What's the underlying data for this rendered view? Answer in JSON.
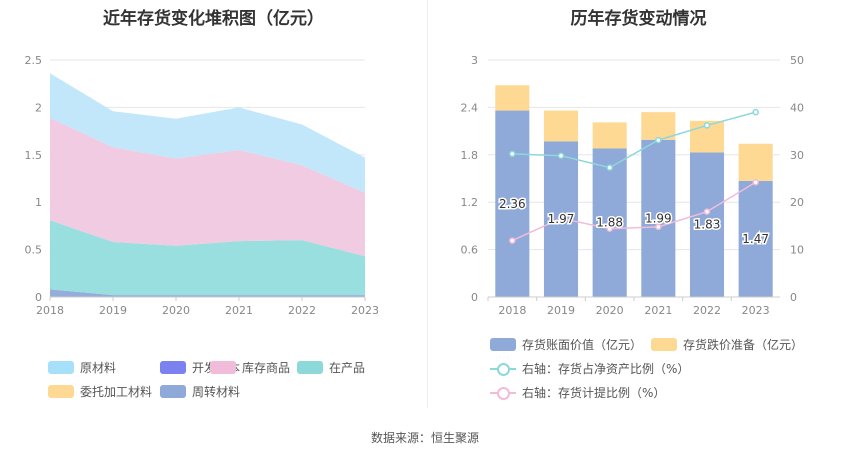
{
  "source": "数据来源：恒生聚源",
  "chart_data": [
    {
      "type": "area",
      "stacked": true,
      "title": "近年存货变化堆积图（亿元）",
      "x": [
        "2018",
        "2019",
        "2020",
        "2021",
        "2022",
        "2023"
      ],
      "ylim": [
        0,
        2.5
      ],
      "yticks": [
        "0",
        "0.5",
        "1",
        "1.5",
        "2",
        "2.5"
      ],
      "series": [
        {
          "name": "周转材料",
          "color": "#8fa9d9",
          "values": [
            0.08,
            0.02,
            0.02,
            0.02,
            0.02,
            0.02
          ]
        },
        {
          "name": "委托加工材料",
          "color": "#fed994",
          "values": [
            0,
            0,
            0,
            0,
            0,
            0
          ]
        },
        {
          "name": "在产品",
          "color": "#93dddd",
          "values": [
            0.73,
            0.56,
            0.52,
            0.57,
            0.58,
            0.41
          ]
        },
        {
          "name": "库存商品",
          "color": "#f0c8e0",
          "values": [
            1.08,
            1.0,
            0.92,
            0.96,
            0.79,
            0.67
          ]
        },
        {
          "name": "开发成本",
          "color": "#7b81ee",
          "values": [
            0,
            0,
            0,
            0,
            0,
            0
          ]
        },
        {
          "name": "原材料",
          "color": "#bfe6fa",
          "values": [
            0.47,
            0.38,
            0.42,
            0.45,
            0.43,
            0.37
          ]
        }
      ],
      "legend": [
        {
          "name": "原材料",
          "color": "#a6e0fa"
        },
        {
          "name": "开发成本",
          "color": "#7b81ee"
        },
        {
          "name": "库存商品",
          "color": "#f0bcd9"
        },
        {
          "name": "在产品",
          "color": "#8dd8d8"
        },
        {
          "name": "委托加工材料",
          "color": "#fed994"
        },
        {
          "name": "周转材料",
          "color": "#8fa9d9"
        }
      ]
    },
    {
      "type": "bar",
      "stacked": true,
      "title": "历年存货变动情况",
      "categories": [
        "2018",
        "2019",
        "2020",
        "2021",
        "2022",
        "2023"
      ],
      "ylim": [
        0,
        3
      ],
      "yticks": [
        "0",
        "0.6",
        "1.2",
        "1.8",
        "2.4",
        "3"
      ],
      "y2lim": [
        0,
        50
      ],
      "y2ticks": [
        "0",
        "10",
        "20",
        "30",
        "40",
        "50"
      ],
      "series": [
        {
          "name": "存货账面价值（亿元）",
          "color": "#8fa9d9",
          "values": [
            2.36,
            1.97,
            1.88,
            1.99,
            1.83,
            1.47
          ],
          "labels": [
            "2.36",
            "1.97",
            "1.88",
            "1.99",
            "1.83",
            "1.47"
          ]
        },
        {
          "name": "存货跌价准备（亿元）",
          "color": "#fed994",
          "values": [
            0.32,
            0.39,
            0.33,
            0.35,
            0.4,
            0.47
          ]
        }
      ],
      "lines": [
        {
          "name": "右轴：存货占净资产比例（%）",
          "color": "#8dd8d8",
          "axis": "right",
          "values": [
            30.2,
            29.8,
            27.3,
            33.1,
            36.2,
            39.0
          ]
        },
        {
          "name": "右轴：存货计提比例（%）",
          "color": "#f0bcd9",
          "axis": "right",
          "values": [
            11.9,
            16.6,
            14.4,
            14.8,
            18.0,
            24.2
          ]
        }
      ]
    }
  ]
}
